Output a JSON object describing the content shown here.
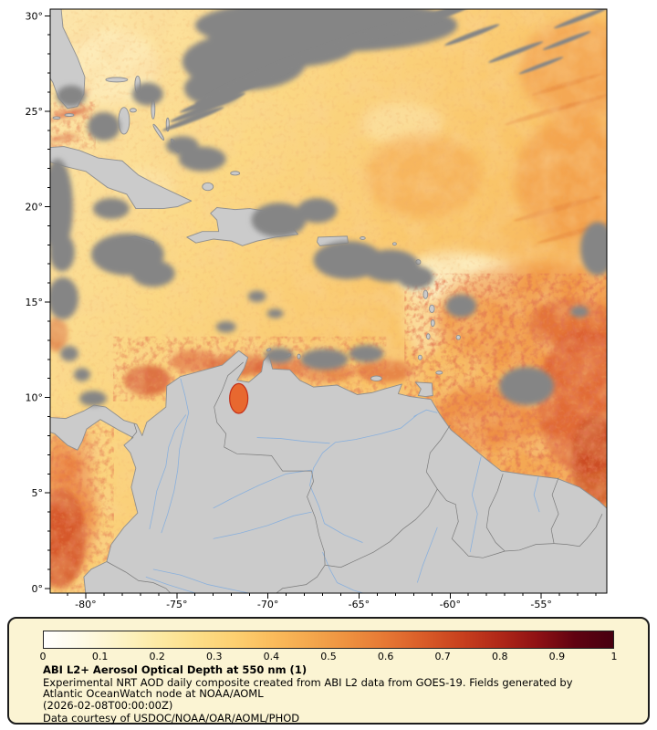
{
  "map": {
    "y_axis_labels": [
      "30°",
      "25°",
      "20°",
      "15°",
      "10°",
      "5°",
      "0°"
    ],
    "x_axis_labels": [
      "-80°",
      "-75°",
      "-70°",
      "-65°",
      "-60°",
      "-55°"
    ]
  },
  "legend": {
    "colorbar_ticks": [
      "0",
      "0.1",
      "0.2",
      "0.3",
      "0.4",
      "0.5",
      "0.6",
      "0.7",
      "0.8",
      "0.9",
      "1"
    ],
    "colorbar_colors": [
      "#ffffff",
      "#fefae6",
      "#fdf3c6",
      "#fdeaa4",
      "#fdde88",
      "#fdd071",
      "#fabc5c",
      "#f4a84d",
      "#ee913f",
      "#e67834",
      "#d95c28",
      "#c8401e",
      "#b02818",
      "#8f1114",
      "#600211",
      "#470010"
    ],
    "title": "ABI L2+ Aerosol Optical Depth at 550 nm (1)",
    "description": "Experimental NRT AOD daily composite created from ABI L2 data from GOES-19. Fields generated by Atlantic OceanWatch node at NOAA/AOML",
    "timestamp": "(2026-02-08T00:00:00Z)",
    "credit": "Data courtesy of USDOC/NOAA/OAR/AOML/PHOD"
  },
  "chart_data": {
    "type": "heatmap",
    "title": "ABI L2+ Aerosol Optical Depth at 550 nm (1)",
    "colorbar": {
      "range": [
        0,
        1
      ],
      "ticks": [
        0,
        0.1,
        0.2,
        0.3,
        0.4,
        0.5,
        0.6,
        0.7,
        0.8,
        0.9,
        1
      ]
    },
    "x_axis": {
      "ticks_deg_lon": [
        -80,
        -75,
        -70,
        -65,
        -60,
        -55
      ]
    },
    "y_axis": {
      "ticks_deg_lat": [
        30,
        25,
        20,
        15,
        10,
        5,
        0
      ]
    }
  }
}
